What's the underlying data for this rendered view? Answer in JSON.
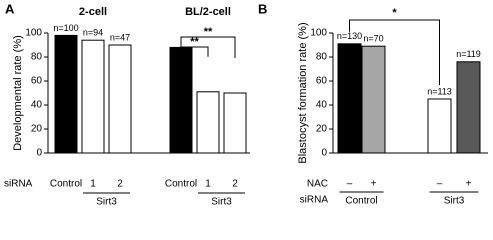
{
  "chart_data": [
    {
      "panel": "A",
      "type": "bar",
      "y_label": "Developmental rate (%)",
      "ylim": [
        0,
        100
      ],
      "yticks": [
        0,
        20,
        40,
        60,
        80,
        100
      ],
      "row_label": "siRNA",
      "groups": [
        {
          "title": "2-cell",
          "sublabel": "Sirt3",
          "categories": [
            "Control",
            "1",
            "2"
          ],
          "values": [
            98,
            94,
            90
          ],
          "colors": [
            "#000000",
            "#ffffff",
            "#ffffff"
          ],
          "n_labels": [
            "n=100",
            "n=94",
            "n=47"
          ]
        },
        {
          "title": "BL/2-cell",
          "sublabel": "Sirt3",
          "categories": [
            "Control",
            "1",
            "2"
          ],
          "values": [
            88,
            51,
            50
          ],
          "colors": [
            "#000000",
            "#ffffff",
            "#ffffff"
          ],
          "significance": [
            "**",
            "**"
          ]
        }
      ]
    },
    {
      "panel": "B",
      "type": "bar",
      "y_label": "Blastocyst formation rate (%)",
      "ylim": [
        0,
        100
      ],
      "yticks": [
        0,
        20,
        40,
        60,
        80,
        100
      ],
      "row_labels": [
        "NAC",
        "siRNA"
      ],
      "nac": [
        "–",
        "+",
        "–",
        "+"
      ],
      "sirna_groups": [
        "Control",
        "Sirt3"
      ],
      "values": [
        91,
        89,
        45,
        76
      ],
      "colors": [
        "#000000",
        "#a6a6a6",
        "#ffffff",
        "#595959"
      ],
      "n_labels": [
        "n=130",
        "n=70",
        "n=113",
        "n=119"
      ],
      "significance": [
        "*"
      ]
    }
  ]
}
